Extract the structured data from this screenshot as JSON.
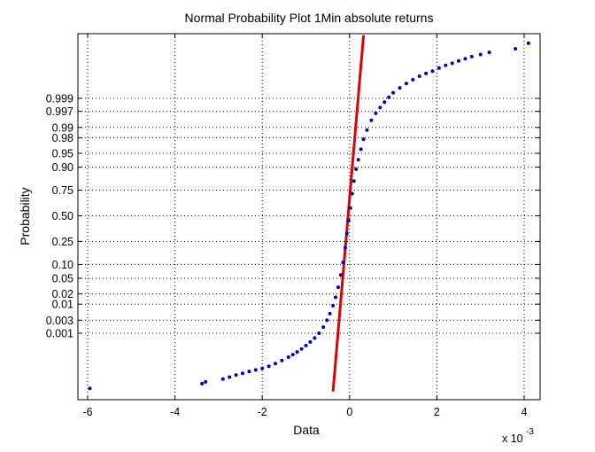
{
  "chart_data": {
    "type": "scatter",
    "title": "Normal Probability Plot 1Min absolute returns",
    "xlabel": "Data",
    "ylabel": "Probability",
    "x_exponent_label": "x 10",
    "x_exponent_power": "-3",
    "xlim": [
      -6.2,
      4.2
    ],
    "x_ticks": [
      -6,
      -4,
      -2,
      0,
      2,
      4
    ],
    "x_tick_labels": [
      "-6",
      "-4",
      "-2",
      "0",
      "2",
      "4"
    ],
    "y_scale": "normal-probability",
    "y_ticks": [
      0.001,
      0.003,
      0.01,
      0.02,
      0.05,
      0.1,
      0.25,
      0.5,
      0.75,
      0.9,
      0.95,
      0.98,
      0.99,
      0.997,
      0.999
    ],
    "y_tick_labels": [
      "0.001",
      "0.003",
      "0.01",
      "0.02",
      "0.05",
      "0.10",
      "0.25",
      "0.50",
      "0.75",
      "0.90",
      "0.95",
      "0.98",
      "0.99",
      "0.997",
      "0.999"
    ],
    "grid": true,
    "data_color": "#0000cc",
    "fit_color": "#e00000",
    "fit_line": {
      "x": [
        -0.38,
        0.32
      ],
      "p": [
        1.9e-06,
        0.999999
      ]
    },
    "points": [
      [
        -5.95,
        2.8e-06
      ],
      [
        -3.38,
        5e-06
      ],
      [
        -3.3,
        6.2e-06
      ],
      [
        -2.9,
        8.8e-06
      ],
      [
        -2.75,
        1.1e-05
      ],
      [
        -2.6,
        1.4e-05
      ],
      [
        -2.45,
        1.7e-05
      ],
      [
        -2.3,
        2.1e-05
      ],
      [
        -2.15,
        2.5e-05
      ],
      [
        -2.0,
        3e-05
      ],
      [
        -1.85,
        3.8e-05
      ],
      [
        -1.7,
        5e-05
      ],
      [
        -1.55,
        7e-05
      ],
      [
        -1.4,
        0.0001
      ],
      [
        -1.3,
        0.00013
      ],
      [
        -1.2,
        0.00017
      ],
      [
        -1.1,
        0.00023
      ],
      [
        -1.0,
        0.00032
      ],
      [
        -0.9,
        0.00045
      ],
      [
        -0.8,
        0.00065
      ],
      [
        -0.7,
        0.001
      ],
      [
        -0.6,
        0.0017
      ],
      [
        -0.52,
        0.003
      ],
      [
        -0.45,
        0.005
      ],
      [
        -0.38,
        0.009
      ],
      [
        -0.32,
        0.016
      ],
      [
        -0.26,
        0.03
      ],
      [
        -0.2,
        0.06
      ],
      [
        -0.15,
        0.11
      ],
      [
        -0.1,
        0.2
      ],
      [
        -0.06,
        0.32
      ],
      [
        -0.02,
        0.45
      ],
      [
        0.02,
        0.58
      ],
      [
        0.06,
        0.72
      ],
      [
        0.1,
        0.82
      ],
      [
        0.15,
        0.89
      ],
      [
        0.2,
        0.93
      ],
      [
        0.26,
        0.96
      ],
      [
        0.32,
        0.978
      ],
      [
        0.4,
        0.988
      ],
      [
        0.5,
        0.994
      ],
      [
        0.6,
        0.9965
      ],
      [
        0.7,
        0.9978
      ],
      [
        0.8,
        0.9986
      ],
      [
        0.9,
        0.9991
      ],
      [
        1.0,
        0.9994
      ],
      [
        1.15,
        0.99962
      ],
      [
        1.3,
        0.99975
      ],
      [
        1.45,
        0.99983
      ],
      [
        1.6,
        0.99988
      ],
      [
        1.75,
        0.99991
      ],
      [
        1.9,
        0.99993
      ],
      [
        2.05,
        0.99995
      ],
      [
        2.2,
        0.999962
      ],
      [
        2.35,
        0.99997
      ],
      [
        2.5,
        0.999977
      ],
      [
        2.65,
        0.999982
      ],
      [
        2.8,
        0.999986
      ],
      [
        3.0,
        0.999989
      ],
      [
        3.2,
        0.9999915
      ],
      [
        3.8,
        0.9999945
      ],
      [
        4.1,
        0.9999972
      ]
    ]
  }
}
